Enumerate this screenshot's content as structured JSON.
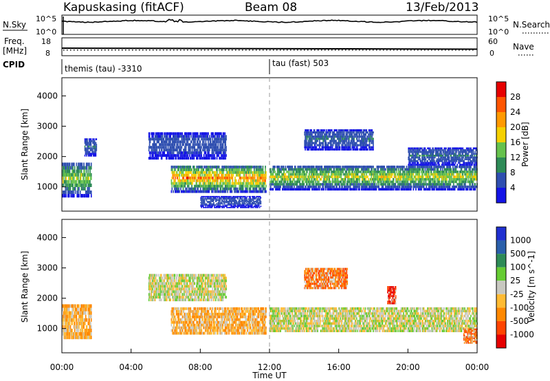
{
  "header": {
    "station": "Kapuskasing (fitACF)",
    "beam": "Beam 08",
    "date": "13/Feb/2013"
  },
  "noise_panel": {
    "left_label": "N.Sky",
    "left_ticks": [
      "10^5",
      "10^0"
    ],
    "right_label": "N.Search",
    "right_ticks": [
      "10^5",
      "10^0"
    ]
  },
  "freq_panel": {
    "left_label_top": "Freq.",
    "left_label_bottom": "[MHz]",
    "left_ticks": [
      "18",
      "8"
    ],
    "right_label": "Nave",
    "right_ticks": [
      "60",
      "0"
    ]
  },
  "cpid_panel": {
    "label": "CPID",
    "modes": [
      {
        "text": "themis (tau) -3310",
        "start_hour": 0
      },
      {
        "text": "tau (fast) 503",
        "start_hour": 12
      }
    ]
  },
  "x_axis": {
    "label": "Time UT",
    "ticks": [
      "00:00",
      "04:00",
      "08:00",
      "12:00",
      "16:00",
      "20:00",
      "00:00"
    ],
    "range_hours": [
      0,
      24
    ]
  },
  "chart_data": [
    {
      "type": "heatmap",
      "name": "power",
      "ylabel": "Slant Range [km]",
      "yticks": [
        "1000",
        "2000",
        "3000",
        "4000"
      ],
      "ylim": [
        200,
        4600
      ],
      "colorbar_label": "Power [dB]",
      "colorbar_ticks": [
        "4",
        "8",
        "12",
        "16",
        "20",
        "24",
        "28"
      ],
      "colorbar_range": [
        0,
        32
      ],
      "colors": [
        "#1414e6",
        "#2f4fb0",
        "#2e8b57",
        "#66c24d",
        "#f5d000",
        "#ff9900",
        "#ff5500",
        "#e60000"
      ],
      "regions": [
        {
          "t0": 0.0,
          "t1": 1.7,
          "r0": 650,
          "r1": 1800,
          "peak": 18
        },
        {
          "t0": 1.3,
          "t1": 2.0,
          "r0": 2000,
          "r1": 2600,
          "peak": 8
        },
        {
          "t0": 6.3,
          "t1": 11.8,
          "r0": 800,
          "r1": 1700,
          "peak": 28
        },
        {
          "t0": 5.0,
          "t1": 9.5,
          "r0": 1900,
          "r1": 2800,
          "peak": 6
        },
        {
          "t0": 8.0,
          "t1": 11.5,
          "r0": 300,
          "r1": 700,
          "peak": 6
        },
        {
          "t0": 12.0,
          "t1": 24.0,
          "r0": 880,
          "r1": 1700,
          "peak": 20
        },
        {
          "t0": 14.0,
          "t1": 18.0,
          "r0": 2200,
          "r1": 2900,
          "peak": 8
        },
        {
          "t0": 20.0,
          "t1": 24.0,
          "r0": 1700,
          "r1": 2300,
          "peak": 8
        }
      ]
    },
    {
      "type": "heatmap",
      "name": "velocity",
      "ylabel": "Slant Range [km]",
      "yticks": [
        "1000",
        "2000",
        "3000",
        "4000"
      ],
      "ylim": [
        200,
        4600
      ],
      "colorbar_label": "Velocity [m s^-1]",
      "colorbar_ticks": [
        "1000",
        "500",
        "100",
        "25",
        "-25",
        "-100",
        "-500",
        "-1000"
      ],
      "colors": [
        "#1f2fd0",
        "#2a5faa",
        "#2e8b57",
        "#66cc33",
        "#c8c8c0",
        "#ffbb33",
        "#ff8800",
        "#ff4400",
        "#e60000"
      ],
      "regions": [
        {
          "t0": 0.0,
          "t1": 1.7,
          "r0": 650,
          "r1": 1800,
          "vel": -100
        },
        {
          "t0": 6.3,
          "t1": 11.8,
          "r0": 800,
          "r1": 1700,
          "vel": -100
        },
        {
          "t0": 5.0,
          "t1": 9.5,
          "r0": 1900,
          "r1": 2800,
          "vel": 0
        },
        {
          "t0": 12.0,
          "t1": 24.0,
          "r0": 880,
          "r1": 1700,
          "vel": 0
        },
        {
          "t0": 14.0,
          "t1": 16.5,
          "r0": 2300,
          "r1": 3000,
          "vel": -500
        },
        {
          "t0": 18.8,
          "t1": 19.3,
          "r0": 1800,
          "r1": 2400,
          "vel": -1000
        },
        {
          "t0": 23.2,
          "t1": 24.0,
          "r0": 500,
          "r1": 1000,
          "vel": -500
        }
      ]
    }
  ]
}
